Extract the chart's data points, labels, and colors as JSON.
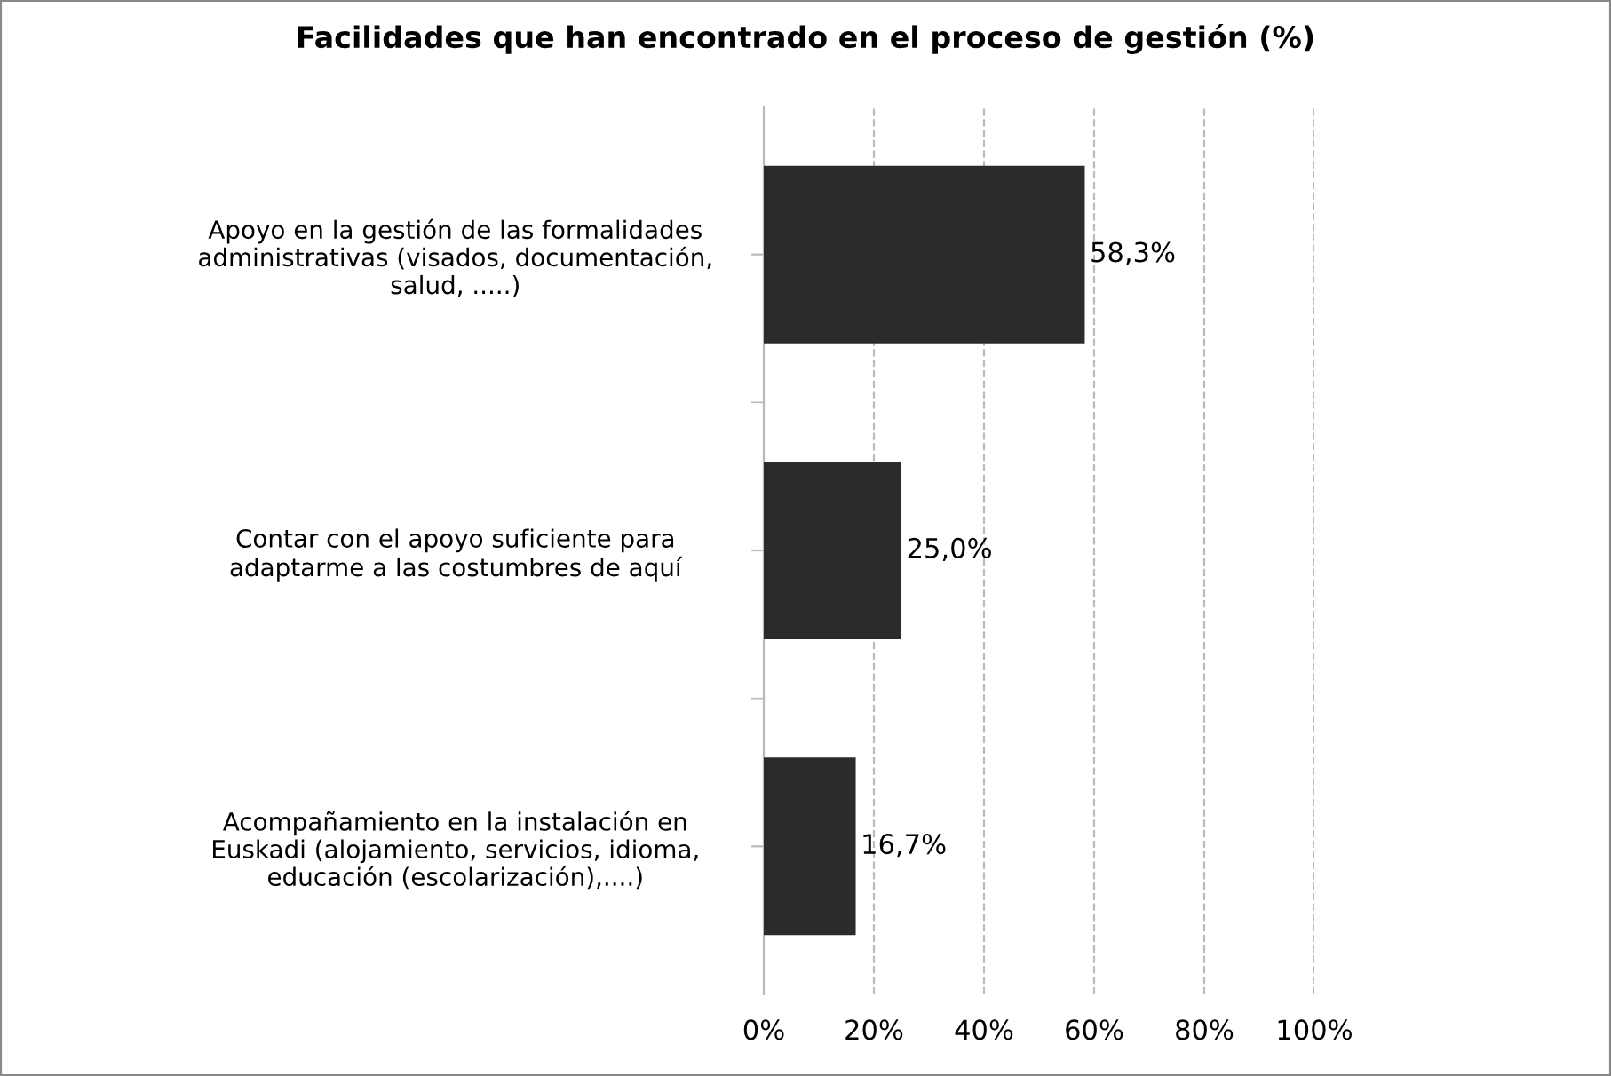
{
  "chart_data": {
    "type": "bar",
    "orientation": "horizontal",
    "title": "Facilidades que han encontrado en el proceso de gestión (%)",
    "categories": [
      "Apoyo en la gestión de las formalidades\nadministrativas (visados, documentación,\nsalud, .....)",
      "Contar con el apoyo suficiente para\nadaptarme a las costumbres de aquí",
      "Acompañamiento en la instalación en\nEuskadi (alojamiento, servicios, idioma,\neducación (escolarización),....)"
    ],
    "values": [
      58.3,
      25.0,
      16.7
    ],
    "value_labels": [
      "58,3%",
      "25,0%",
      "16,7%"
    ],
    "color": "#2b2b2b",
    "xlim": [
      0,
      100
    ],
    "xticks": [
      {
        "value": 0,
        "label": "0%"
      },
      {
        "value": 20,
        "label": "20%"
      },
      {
        "value": 40,
        "label": "40%"
      },
      {
        "value": 60,
        "label": "60%"
      },
      {
        "value": 80,
        "label": "80%"
      },
      {
        "value": 100,
        "label": "100%"
      }
    ],
    "grid": "x",
    "legend": false
  }
}
